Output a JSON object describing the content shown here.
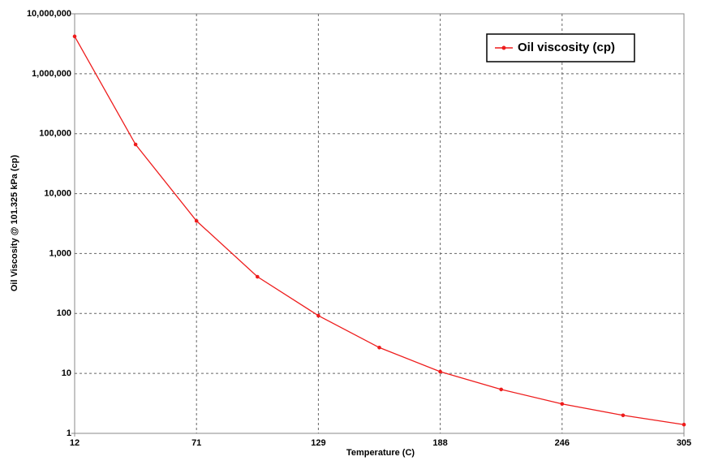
{
  "chart_data": {
    "type": "line",
    "x_label": "Temperature (C)",
    "y_label": "Oil Viscosity @ 101.325 kPa (cp)",
    "x": [
      12,
      41.3,
      70.6,
      99.9,
      129.2,
      158.5,
      187.8,
      217.1,
      246.4,
      275.7,
      305
    ],
    "series": [
      {
        "name": "Oil viscosity (cp)",
        "color": "#ee1c1c",
        "values": [
          4200000,
          66000,
          3500,
          410,
          92,
          27,
          10.7,
          5.4,
          3.1,
          2.0,
          1.4
        ]
      }
    ],
    "xlim": [
      12,
      305
    ],
    "xticks": [
      12,
      {
        "value": 70.6,
        "label": "71"
      },
      {
        "value": 129.2,
        "label": "129"
      },
      {
        "value": 187.8,
        "label": "188"
      },
      {
        "value": 246.4,
        "label": "246"
      },
      305
    ],
    "ylim": [
      1,
      10000000
    ],
    "yticks": [
      1,
      10,
      100,
      {
        "value": 1000,
        "label": "1,000"
      },
      {
        "value": 10000,
        "label": "10,000"
      },
      {
        "value": 100000,
        "label": "100,000"
      },
      {
        "value": 1000000,
        "label": "1,000,000"
      },
      {
        "value": 10000000,
        "label": "10,000,000"
      }
    ],
    "log_y": true,
    "grid": true,
    "legend": "upper right"
  }
}
